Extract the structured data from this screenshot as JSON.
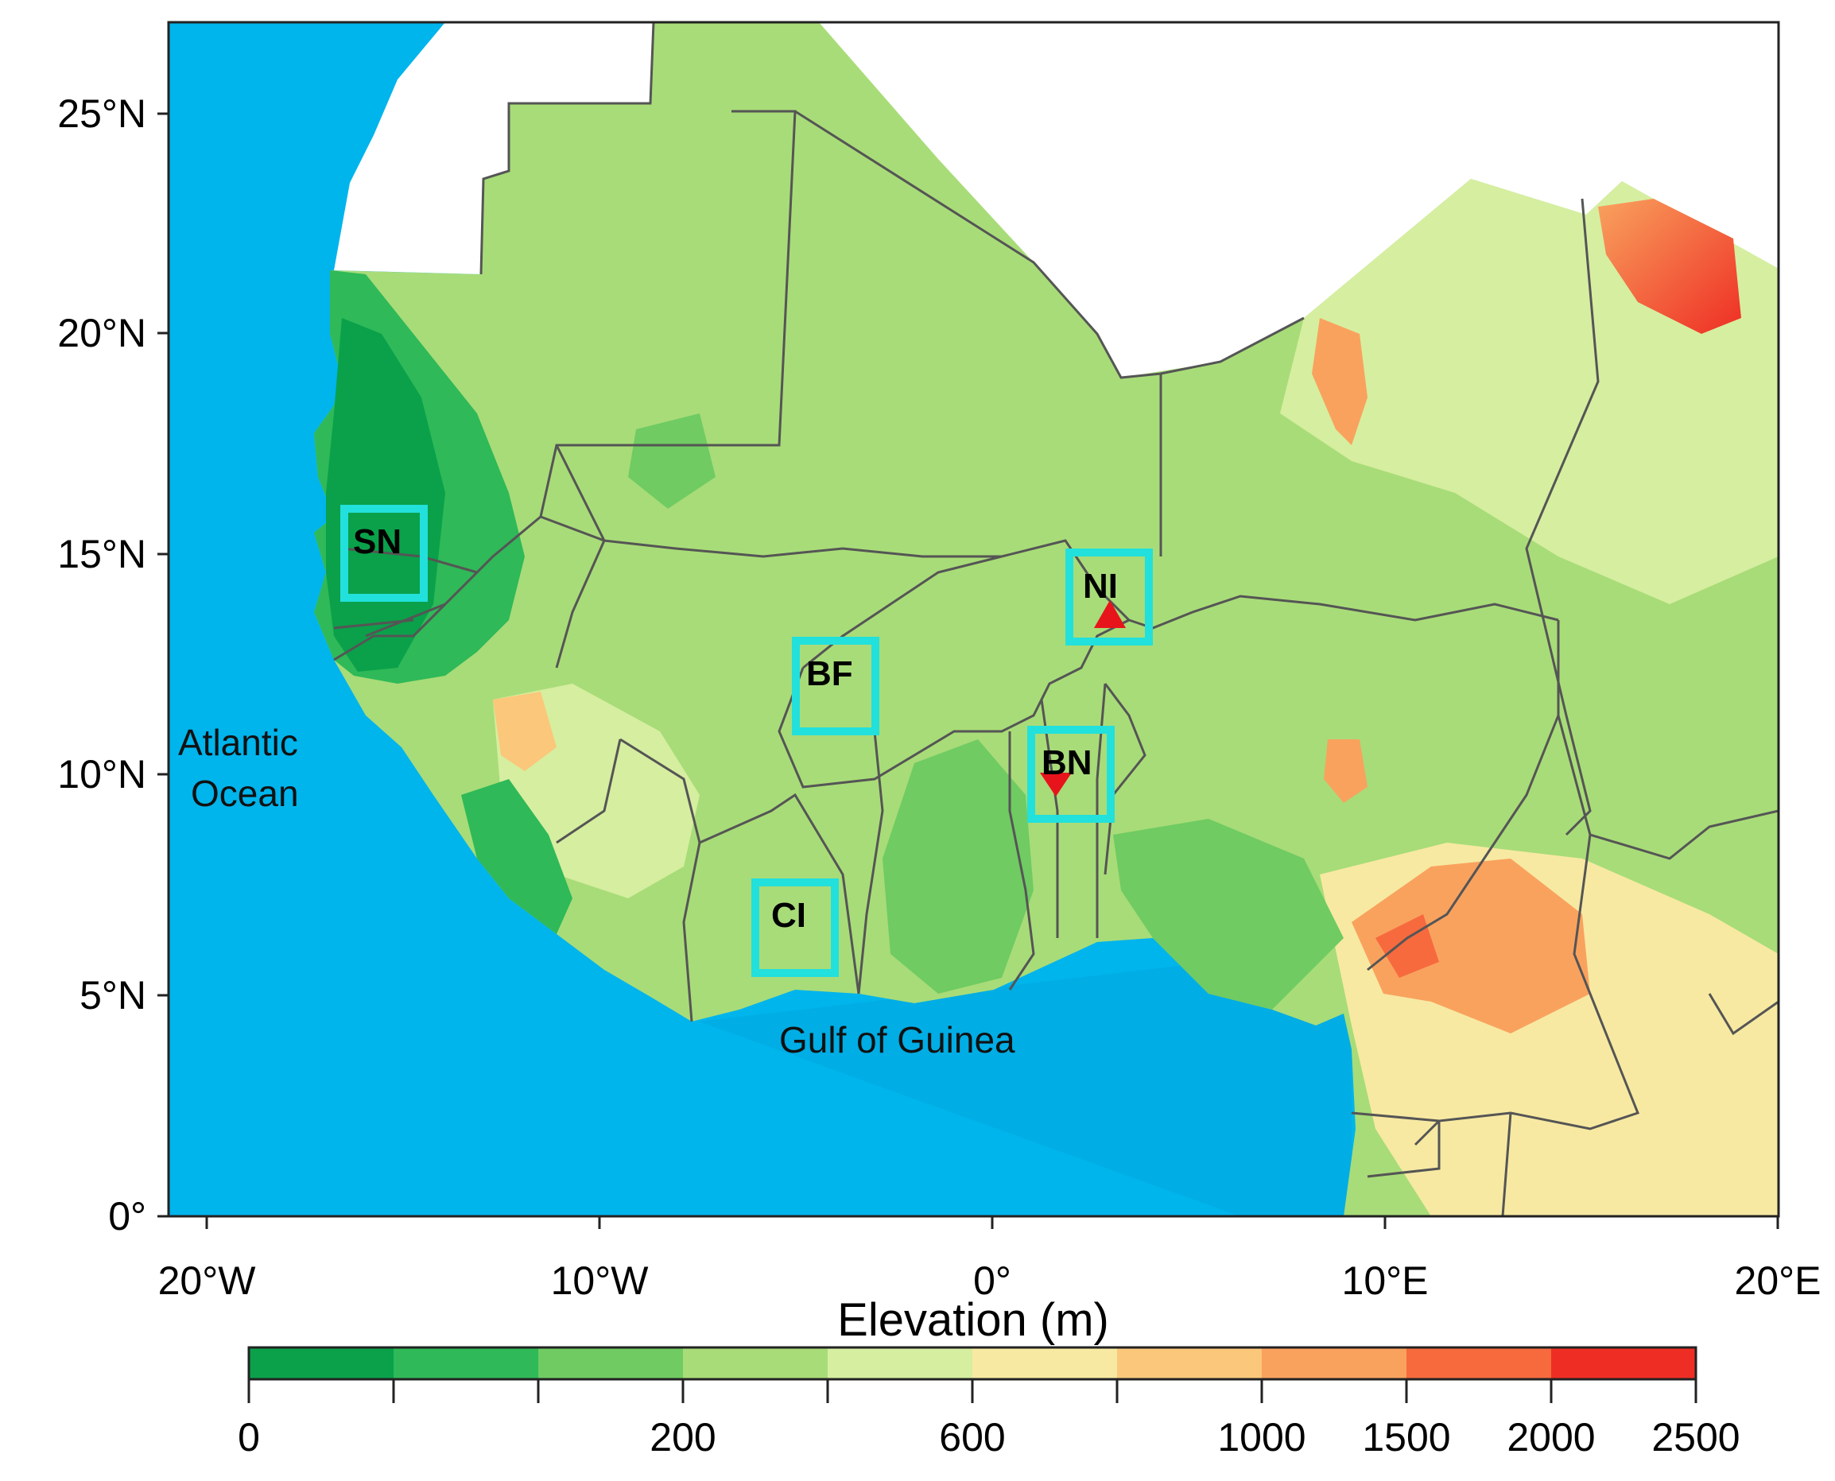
{
  "map": {
    "lat_labels": [
      "25°N",
      "20°N",
      "15°N",
      "10°N",
      "5°N",
      "0°"
    ],
    "lon_labels": [
      "20°W",
      "10°W",
      "0°",
      "10°E",
      "20°E"
    ],
    "places": {
      "ocean": [
        "Atlantic",
        "Ocean"
      ],
      "gulf": "Gulf of Guinea"
    },
    "regions": [
      {
        "code": "SN"
      },
      {
        "code": "BF"
      },
      {
        "code": "NI"
      },
      {
        "code": "BN"
      },
      {
        "code": "CI"
      }
    ],
    "colors": {
      "ocean": "#00b4ec",
      "region_box": "#22e0dc",
      "station_marker": "#e8141c",
      "border": "#555555"
    }
  },
  "colorbar": {
    "title": "Elevation (m)",
    "unit": "m",
    "tick_labels": [
      "0",
      "200",
      "600",
      "1000",
      "1500",
      "2000",
      "2500"
    ],
    "bins": [
      {
        "from": 0,
        "to": 50,
        "color": "#0aa14a"
      },
      {
        "from": 50,
        "to": 100,
        "color": "#2fb958"
      },
      {
        "from": 100,
        "to": 200,
        "color": "#6fcb62"
      },
      {
        "from": 200,
        "to": 400,
        "color": "#a8dc78"
      },
      {
        "from": 400,
        "to": 600,
        "color": "#d6eea0"
      },
      {
        "from": 600,
        "to": 800,
        "color": "#f7e9a2"
      },
      {
        "from": 800,
        "to": 1000,
        "color": "#fbc77a"
      },
      {
        "from": 1000,
        "to": 1500,
        "color": "#f9a25e"
      },
      {
        "from": 1500,
        "to": 2000,
        "color": "#f66a3e"
      },
      {
        "from": 2000,
        "to": 2500,
        "color": "#ee2e24"
      }
    ]
  }
}
